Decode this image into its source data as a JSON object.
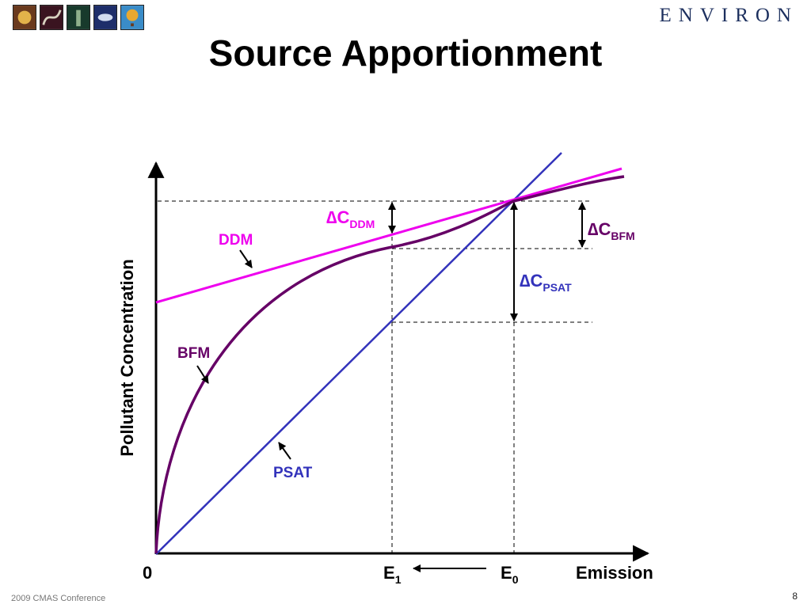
{
  "header": {
    "title": "Source Apportionment",
    "brand": "ENVIRON",
    "thumbnails": [
      {
        "icon": "globe-icon",
        "bg": "#6a3a1e",
        "fg": "#e2b24a"
      },
      {
        "icon": "dna-icon",
        "bg": "#3a1420",
        "fg": "#d8d2c0"
      },
      {
        "icon": "tower-icon",
        "bg": "#183a2c",
        "fg": "#8fb08c"
      },
      {
        "icon": "dish-icon",
        "bg": "#1e2e6a",
        "fg": "#d2dcf0"
      },
      {
        "icon": "balloon-icon",
        "bg": "#3a8cc8",
        "fg": "#e8a830"
      }
    ]
  },
  "diagram": {
    "y_axis_label": "Pollutant Concentration",
    "x_axis_label": "Emission",
    "origin_label": "0",
    "e1_label": "E",
    "e1_sub": "1",
    "e0_label": "E",
    "e0_sub": "0",
    "curves": {
      "ddm": {
        "label": "DDM",
        "color": "#ee00ee"
      },
      "bfm": {
        "label": "BFM",
        "color": "#660066"
      },
      "psat": {
        "label": "PSAT",
        "color": "#3333bb"
      }
    },
    "deltas": {
      "ddm": {
        "symbol": "∆C",
        "sub": "DDM",
        "color": "#ee00ee"
      },
      "bfm": {
        "symbol": "∆C",
        "sub": "BFM",
        "color": "#660066"
      },
      "psat": {
        "symbol": "∆C",
        "sub": "PSAT",
        "color": "#3333bb"
      }
    }
  },
  "footer": {
    "conference": "2009 CMAS Conference",
    "page_number": "8"
  }
}
